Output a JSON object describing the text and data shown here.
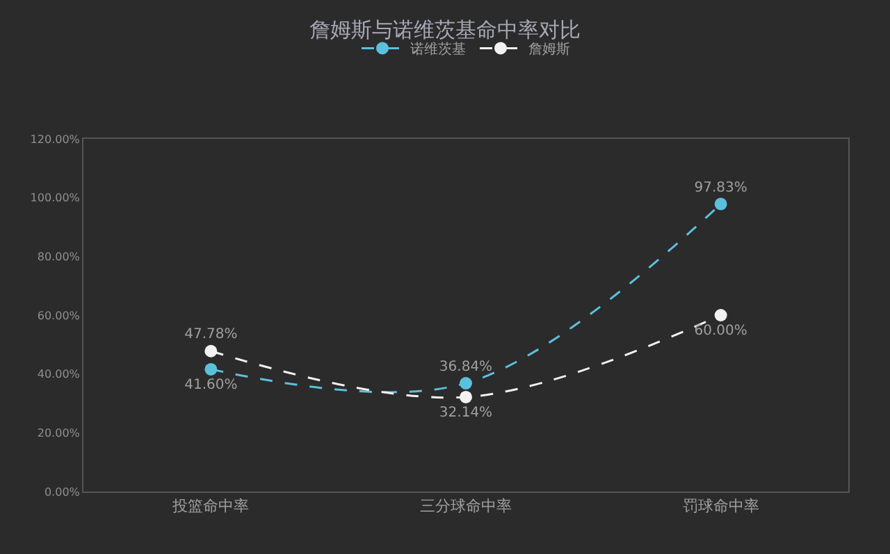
{
  "chart_data": {
    "type": "line",
    "title": "詹姆斯与诺维茨基命中率对比",
    "categories": [
      "投篮命中率",
      "三分球命中率",
      "罚球命中率"
    ],
    "series": [
      {
        "name": "诺维茨基",
        "color": "#5bc0de",
        "values": [
          41.6,
          36.84,
          97.83
        ],
        "value_labels": [
          "41.60%",
          "36.84%",
          "97.83%"
        ]
      },
      {
        "name": "詹姆斯",
        "color": "#f2f2f2",
        "values": [
          47.78,
          32.14,
          60.0
        ],
        "value_labels": [
          "47.78%",
          "32.14%",
          "60.00%"
        ]
      }
    ],
    "ylim": [
      0,
      120
    ],
    "yticks": [
      {
        "value": 0,
        "label": "0.00%"
      },
      {
        "value": 20,
        "label": "20.00%"
      },
      {
        "value": 40,
        "label": "40.00%"
      },
      {
        "value": 60,
        "label": "60.00%"
      },
      {
        "value": 80,
        "label": "80.00%"
      },
      {
        "value": 100,
        "label": "100.00%"
      },
      {
        "value": 120,
        "label": "120.00%"
      }
    ],
    "legend": "top",
    "marker": "circle",
    "line_style": "dashed",
    "grid": false
  }
}
